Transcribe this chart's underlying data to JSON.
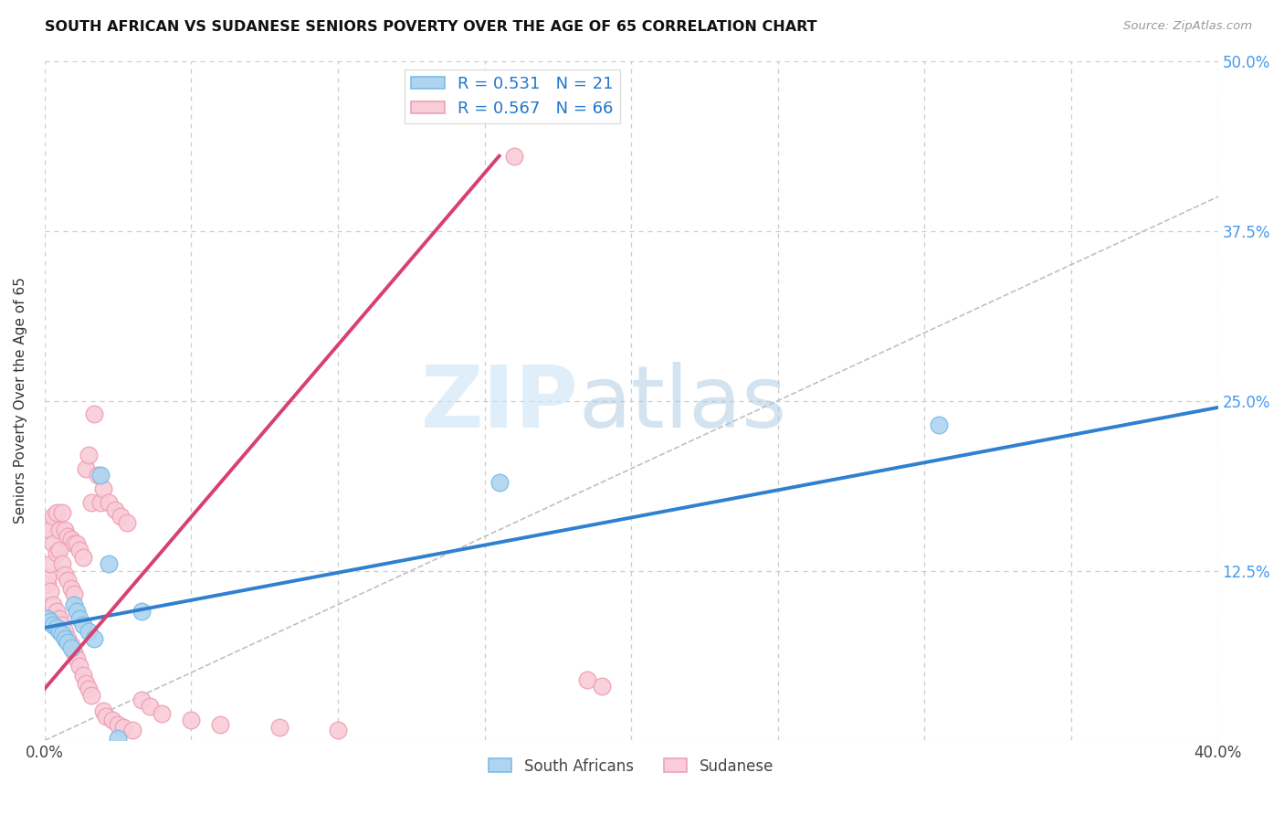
{
  "title": "SOUTH AFRICAN VS SUDANESE SENIORS POVERTY OVER THE AGE OF 65 CORRELATION CHART",
  "source": "Source: ZipAtlas.com",
  "ylabel": "Seniors Poverty Over the Age of 65",
  "xlim": [
    0,
    0.4
  ],
  "ylim": [
    0,
    0.5
  ],
  "xtick_positions": [
    0.0,
    0.05,
    0.1,
    0.15,
    0.2,
    0.25,
    0.3,
    0.35,
    0.4
  ],
  "xtick_labels": [
    "0.0%",
    "",
    "",
    "",
    "",
    "",
    "",
    "",
    "40.0%"
  ],
  "ytick_positions": [
    0.0,
    0.125,
    0.25,
    0.375,
    0.5
  ],
  "ytick_labels_right": [
    "",
    "12.5%",
    "25.0%",
    "37.5%",
    "50.0%"
  ],
  "grid_color": "#cccccc",
  "background_color": "#ffffff",
  "watermark_zip": "ZIP",
  "watermark_atlas": "atlas",
  "legend_r1": "R = 0.531",
  "legend_n1": "N = 21",
  "legend_r2": "R = 0.567",
  "legend_n2": "N = 66",
  "color_sa_edge": "#7bbde8",
  "color_sa_fill": "#aed4f0",
  "color_sud_edge": "#f0a0b8",
  "color_sud_fill": "#f8ccd8",
  "color_line_sa": "#3080d0",
  "color_line_sud": "#d84070",
  "color_line_diag": "#c0c0c0",
  "sa_line_x0": 0.0,
  "sa_line_y0": 0.083,
  "sa_line_x1": 0.4,
  "sa_line_y1": 0.245,
  "sud_line_x0": 0.0,
  "sud_line_y0": 0.038,
  "sud_line_x1": 0.155,
  "sud_line_y1": 0.43,
  "sa_x": [
    0.001,
    0.002,
    0.003,
    0.004,
    0.005,
    0.006,
    0.007,
    0.008,
    0.009,
    0.01,
    0.011,
    0.012,
    0.013,
    0.015,
    0.017,
    0.019,
    0.022,
    0.033,
    0.155,
    0.305,
    0.025
  ],
  "sa_y": [
    0.09,
    0.088,
    0.085,
    0.083,
    0.08,
    0.078,
    0.075,
    0.072,
    0.068,
    0.1,
    0.095,
    0.09,
    0.085,
    0.08,
    0.075,
    0.195,
    0.13,
    0.095,
    0.19,
    0.232,
    0.002
  ],
  "sud_x": [
    0.001,
    0.001,
    0.001,
    0.002,
    0.002,
    0.002,
    0.003,
    0.003,
    0.003,
    0.004,
    0.004,
    0.004,
    0.005,
    0.005,
    0.005,
    0.006,
    0.006,
    0.006,
    0.007,
    0.007,
    0.007,
    0.008,
    0.008,
    0.008,
    0.009,
    0.009,
    0.009,
    0.01,
    0.01,
    0.01,
    0.011,
    0.011,
    0.012,
    0.012,
    0.013,
    0.013,
    0.014,
    0.014,
    0.015,
    0.015,
    0.016,
    0.016,
    0.017,
    0.018,
    0.019,
    0.02,
    0.02,
    0.021,
    0.022,
    0.023,
    0.024,
    0.025,
    0.026,
    0.027,
    0.028,
    0.03,
    0.033,
    0.036,
    0.04,
    0.05,
    0.06,
    0.08,
    0.1,
    0.16,
    0.185,
    0.19
  ],
  "sud_y": [
    0.115,
    0.16,
    0.12,
    0.11,
    0.155,
    0.13,
    0.1,
    0.145,
    0.165,
    0.095,
    0.138,
    0.168,
    0.09,
    0.14,
    0.155,
    0.085,
    0.13,
    0.168,
    0.08,
    0.122,
    0.155,
    0.075,
    0.118,
    0.15,
    0.07,
    0.112,
    0.148,
    0.065,
    0.108,
    0.145,
    0.06,
    0.145,
    0.055,
    0.14,
    0.048,
    0.135,
    0.042,
    0.2,
    0.038,
    0.21,
    0.033,
    0.175,
    0.24,
    0.195,
    0.175,
    0.022,
    0.185,
    0.018,
    0.175,
    0.015,
    0.17,
    0.012,
    0.165,
    0.01,
    0.16,
    0.008,
    0.03,
    0.025,
    0.02,
    0.015,
    0.012,
    0.01,
    0.008,
    0.43,
    0.045,
    0.04
  ]
}
